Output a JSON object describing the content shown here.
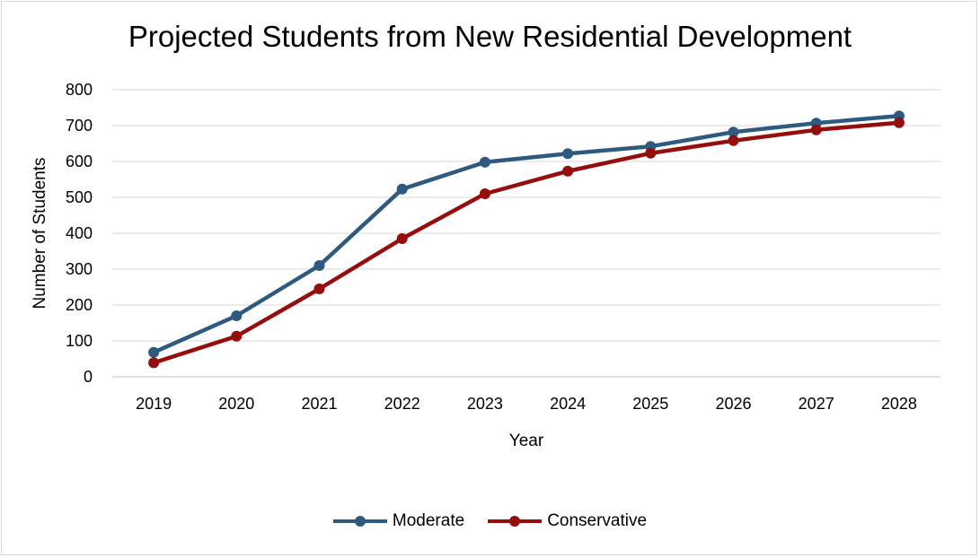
{
  "chart_data": {
    "type": "line",
    "title": "Projected Students from New Residential Development",
    "xlabel": "Year",
    "ylabel": "Number  of Students",
    "categories": [
      "2019",
      "2020",
      "2021",
      "2022",
      "2023",
      "2024",
      "2025",
      "2026",
      "2027",
      "2028"
    ],
    "ylim": [
      0,
      800
    ],
    "yticks": [
      0,
      100,
      200,
      300,
      400,
      500,
      600,
      700,
      800
    ],
    "grid": true,
    "legend_position": "bottom",
    "series": [
      {
        "name": "Moderate",
        "color": "#2e5a80",
        "values": [
          68,
          170,
          310,
          523,
          598,
          622,
          642,
          682,
          707,
          727
        ]
      },
      {
        "name": "Conservative",
        "color": "#960d0d",
        "values": [
          39,
          113,
          245,
          385,
          510,
          573,
          623,
          658,
          688,
          708
        ]
      }
    ]
  }
}
